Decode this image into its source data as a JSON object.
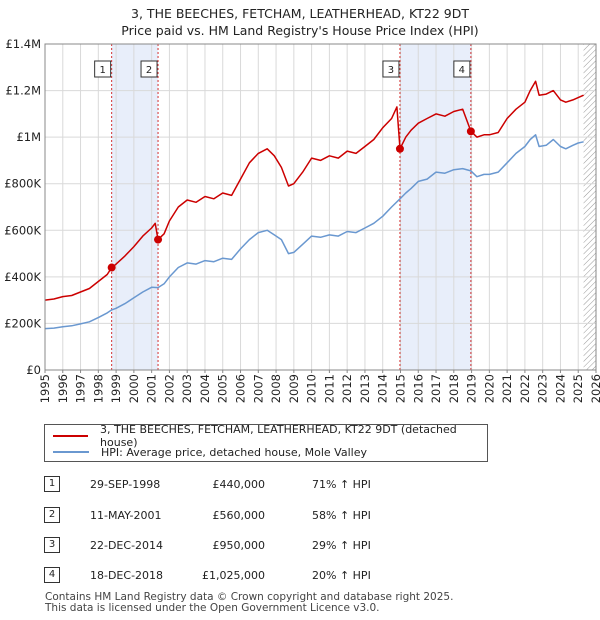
{
  "title_line1": "3, THE BEECHES, FETCHAM, LEATHERHEAD, KT22 9DT",
  "title_line2": "Price paid vs. HM Land Registry's House Price Index (HPI)",
  "colors": {
    "property": "#cc0000",
    "hpi": "#6a98d0",
    "band": "#e8eefa",
    "sale_vline": "#cc0000",
    "grid": "#d9d9d9"
  },
  "chart_data": {
    "type": "line",
    "x_range": [
      1995,
      2026
    ],
    "y_range": [
      0,
      1400000
    ],
    "y_ticks": [
      0,
      200000,
      400000,
      600000,
      800000,
      1000000,
      1200000,
      1400000
    ],
    "y_tick_labels": [
      "£0",
      "£200K",
      "£400K",
      "£600K",
      "£800K",
      "£1M",
      "£1.2M",
      "£1.4M"
    ],
    "x_ticks": [
      1995,
      1996,
      1997,
      1998,
      1999,
      2000,
      2001,
      2002,
      2003,
      2004,
      2005,
      2006,
      2007,
      2008,
      2009,
      2010,
      2011,
      2012,
      2013,
      2014,
      2015,
      2016,
      2017,
      2018,
      2019,
      2020,
      2021,
      2022,
      2023,
      2024,
      2025,
      2026
    ],
    "x_tick_labels": [
      "1995",
      "1996",
      "1997",
      "1998",
      "1999",
      "2000",
      "2001",
      "2002",
      "2003",
      "2004",
      "2005",
      "2006",
      "2007",
      "2008",
      "2009",
      "2010",
      "2011",
      "2012",
      "2013",
      "2014",
      "2015",
      "2016",
      "2017",
      "2018",
      "2019",
      "2020",
      "2021",
      "2022",
      "2023",
      "2024",
      "2025",
      "2026"
    ],
    "shaded_periods": [
      [
        1998.75,
        2001.36
      ],
      [
        2014.97,
        2018.96
      ]
    ],
    "hatched_from": 2025.3,
    "series": [
      {
        "name": "3, THE BEECHES, FETCHAM, LEATHERHEAD, KT22 9DT (detached house)",
        "x": [
          1995.0,
          1995.5,
          1996.0,
          1996.5,
          1997.0,
          1997.5,
          1998.0,
          1998.5,
          1998.75,
          1999.0,
          1999.5,
          2000.0,
          2000.5,
          2001.0,
          2001.2,
          2001.36,
          2001.7,
          2002.0,
          2002.5,
          2003.0,
          2003.5,
          2004.0,
          2004.5,
          2005.0,
          2005.5,
          2006.0,
          2006.5,
          2007.0,
          2007.5,
          2007.9,
          2008.3,
          2008.7,
          2009.0,
          2009.5,
          2010.0,
          2010.5,
          2011.0,
          2011.5,
          2012.0,
          2012.5,
          2013.0,
          2013.5,
          2014.0,
          2014.5,
          2014.8,
          2014.97,
          2015.3,
          2015.6,
          2016.0,
          2016.5,
          2017.0,
          2017.5,
          2018.0,
          2018.5,
          2018.96,
          2019.3,
          2019.7,
          2020.0,
          2020.5,
          2021.0,
          2021.5,
          2022.0,
          2022.3,
          2022.6,
          2022.8,
          2023.2,
          2023.6,
          2024.0,
          2024.3,
          2024.7,
          2025.0,
          2025.3
        ],
        "values": [
          300000,
          305000,
          315000,
          320000,
          335000,
          350000,
          380000,
          410000,
          440000,
          455000,
          490000,
          530000,
          575000,
          610000,
          630000,
          560000,
          585000,
          640000,
          700000,
          730000,
          720000,
          745000,
          735000,
          760000,
          750000,
          820000,
          890000,
          930000,
          950000,
          920000,
          870000,
          790000,
          800000,
          850000,
          910000,
          900000,
          920000,
          910000,
          940000,
          930000,
          960000,
          990000,
          1040000,
          1080000,
          1130000,
          950000,
          1000000,
          1030000,
          1060000,
          1080000,
          1100000,
          1090000,
          1110000,
          1120000,
          1025000,
          1000000,
          1010000,
          1010000,
          1020000,
          1080000,
          1120000,
          1150000,
          1200000,
          1240000,
          1180000,
          1185000,
          1200000,
          1160000,
          1150000,
          1160000,
          1170000,
          1180000
        ]
      },
      {
        "name": "HPI: Average price, detached house, Mole Valley",
        "x": [
          1995.0,
          1995.5,
          1996.0,
          1996.5,
          1997.0,
          1997.5,
          1998.0,
          1998.5,
          1998.75,
          1999.0,
          1999.5,
          2000.0,
          2000.5,
          2001.0,
          2001.36,
          2001.7,
          2002.0,
          2002.5,
          2003.0,
          2003.5,
          2004.0,
          2004.5,
          2005.0,
          2005.5,
          2006.0,
          2006.5,
          2007.0,
          2007.5,
          2007.9,
          2008.3,
          2008.7,
          2009.0,
          2009.5,
          2010.0,
          2010.5,
          2011.0,
          2011.5,
          2012.0,
          2012.5,
          2013.0,
          2013.5,
          2014.0,
          2014.5,
          2014.97,
          2015.3,
          2015.6,
          2016.0,
          2016.5,
          2017.0,
          2017.5,
          2018.0,
          2018.5,
          2018.96,
          2019.3,
          2019.7,
          2020.0,
          2020.5,
          2021.0,
          2021.5,
          2022.0,
          2022.3,
          2022.6,
          2022.8,
          2023.2,
          2023.6,
          2024.0,
          2024.3,
          2024.7,
          2025.0,
          2025.3
        ],
        "values": [
          178000,
          180000,
          186000,
          190000,
          198000,
          207000,
          225000,
          245000,
          258000,
          265000,
          285000,
          310000,
          335000,
          355000,
          354000,
          370000,
          400000,
          440000,
          460000,
          455000,
          470000,
          465000,
          480000,
          475000,
          520000,
          560000,
          590000,
          600000,
          580000,
          560000,
          500000,
          505000,
          540000,
          575000,
          570000,
          580000,
          575000,
          595000,
          590000,
          610000,
          630000,
          660000,
          700000,
          735000,
          760000,
          780000,
          810000,
          820000,
          850000,
          845000,
          860000,
          865000,
          855000,
          830000,
          840000,
          840000,
          850000,
          890000,
          930000,
          960000,
          990000,
          1010000,
          960000,
          965000,
          990000,
          960000,
          950000,
          965000,
          975000,
          980000
        ]
      }
    ],
    "sales": [
      {
        "id": "1",
        "x": 1998.75,
        "value": 440000
      },
      {
        "id": "2",
        "x": 2001.36,
        "value": 560000
      },
      {
        "id": "3",
        "x": 2014.97,
        "value": 950000
      },
      {
        "id": "4",
        "x": 2018.96,
        "value": 1025000
      }
    ]
  },
  "legend": {
    "property_label": "3, THE BEECHES, FETCHAM, LEATHERHEAD, KT22 9DT (detached house)",
    "hpi_label": "HPI: Average price, detached house, Mole Valley"
  },
  "sales_table": [
    {
      "id": "1",
      "date": "29-SEP-1998",
      "price": "£440,000",
      "hpi": "71% ↑ HPI"
    },
    {
      "id": "2",
      "date": "11-MAY-2001",
      "price": "£560,000",
      "hpi": "58% ↑ HPI"
    },
    {
      "id": "3",
      "date": "22-DEC-2014",
      "price": "£950,000",
      "hpi": "29% ↑ HPI"
    },
    {
      "id": "4",
      "date": "18-DEC-2018",
      "price": "£1,025,000",
      "hpi": "20% ↑ HPI"
    }
  ],
  "footer_line1": "Contains HM Land Registry data © Crown copyright and database right 2025.",
  "footer_line2": "This data is licensed under the Open Government Licence v3.0."
}
